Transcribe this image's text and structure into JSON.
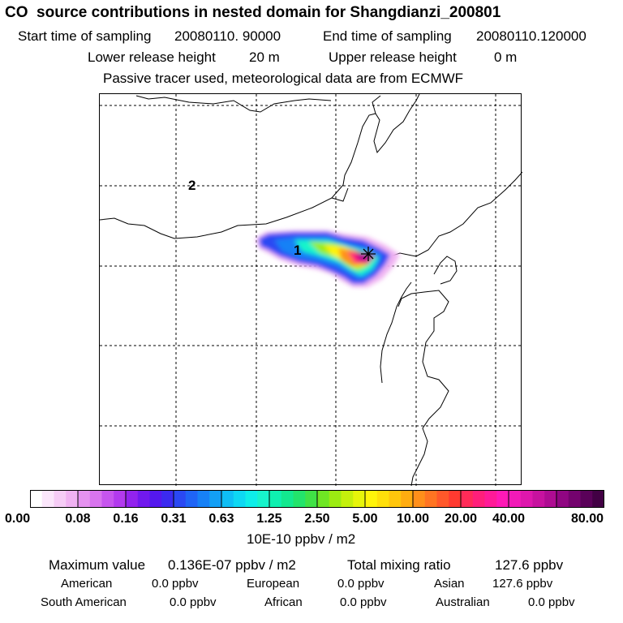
{
  "title": "CO  source contributions in nested domain for Shangdianzi_200801",
  "sampling": {
    "start_label": "Start time of sampling",
    "start_value": "20080110. 90000",
    "end_label": "End time of sampling",
    "end_value": "20080110.120000"
  },
  "release": {
    "lower_label": "Lower release height",
    "lower_value": "20 m",
    "upper_label": "Upper release height",
    "upper_value": "0 m"
  },
  "note": "Passive tracer used, meteorological data are from ECMWF",
  "map": {
    "region_labels": [
      "1",
      "2"
    ],
    "receptor_icon": "star-marker-icon"
  },
  "colorbar": {
    "tick_labels": [
      "0.00",
      "0.08",
      "0.16",
      "0.31",
      "0.63",
      "1.25",
      "2.50",
      "5.00",
      "10.00",
      "20.00",
      "40.00",
      "80.00"
    ],
    "colors": [
      "#ffffff",
      "#fbe6fb",
      "#f6ccf6",
      "#f0b2f2",
      "#e592f0",
      "#d874ee",
      "#c655ee",
      "#b23aee",
      "#9223ee",
      "#7119ee",
      "#5418ee",
      "#3b2af0",
      "#2a48f3",
      "#1f64f6",
      "#1781f6",
      "#139ff5",
      "#0fbef5",
      "#0ed8f3",
      "#0eeee9",
      "#17f4cb",
      "#0ff0b0",
      "#13e98f",
      "#23e46b",
      "#40e246",
      "#6fe624",
      "#9ceb12",
      "#c4f00c",
      "#e7f50a",
      "#fff40a",
      "#ffdf0a",
      "#ffc60c",
      "#ffac10",
      "#ff8f1a",
      "#ff7422",
      "#ff582a",
      "#ff3a30",
      "#ff2b58",
      "#ff1f7a",
      "#ff1a98",
      "#ff19b6",
      "#f21ab8",
      "#de17ad",
      "#c7129f",
      "#ae0c92",
      "#900682",
      "#74036e",
      "#5a0159",
      "#420044"
    ],
    "unit": "10E-10 ppbv / m2"
  },
  "stats": {
    "max_label": "Maximum value",
    "max_value": "0.136E-07 ppbv / m2",
    "total_label": "Total mixing ratio",
    "total_value": "127.6 ppbv",
    "regions": [
      {
        "name": "American",
        "value": "0.0 ppbv"
      },
      {
        "name": "European",
        "value": "0.0 ppbv"
      },
      {
        "name": "Asian",
        "value": "127.6 ppbv"
      },
      {
        "name": "South American",
        "value": "0.0 ppbv"
      },
      {
        "name": "African",
        "value": "0.0 ppbv"
      },
      {
        "name": "Australian",
        "value": "0.0 ppbv"
      }
    ]
  }
}
